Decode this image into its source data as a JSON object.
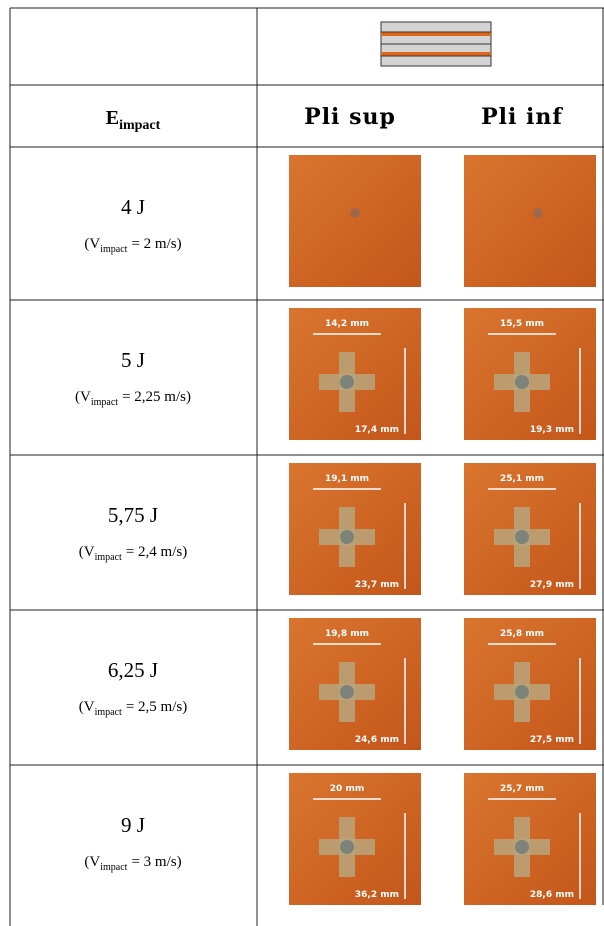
{
  "table": {
    "header": {
      "symbol": "E",
      "subscript": "impact",
      "columns": [
        "Pli sup",
        "Pli inf"
      ]
    },
    "rows": [
      {
        "energy": "4 J",
        "velocity_prefix": "(V",
        "velocity_sub": "impact",
        "velocity_value": "= 2 m/s)"
      },
      {
        "energy": "5 J",
        "velocity_prefix": "(V",
        "velocity_sub": "impact",
        "velocity_value": "= 2,25 m/s)",
        "sup": {
          "width": "14,2 mm",
          "height": "17,4 mm"
        },
        "inf": {
          "width": "15,5 mm",
          "height": "19,3 mm"
        }
      },
      {
        "energy": "5,75 J",
        "velocity_prefix": "(V",
        "velocity_sub": "impact",
        "velocity_value": "= 2,4 m/s)",
        "sup": {
          "width": "19,1 mm",
          "height": "23,7 mm"
        },
        "inf": {
          "width": "25,1 mm",
          "height": "27,9 mm"
        }
      },
      {
        "energy": "6,25 J",
        "velocity_prefix": "(V",
        "velocity_sub": "impact",
        "velocity_value": "= 2,5 m/s)",
        "sup": {
          "width": "19,8 mm",
          "height": "24,6 mm"
        },
        "inf": {
          "width": "25,8 mm",
          "height": "27,5 mm"
        }
      },
      {
        "energy": "9 J",
        "velocity_prefix": "(V",
        "velocity_sub": "impact",
        "velocity_value": "= 3 m/s)",
        "sup": {
          "width": "20 mm",
          "height": "36,2 mm"
        },
        "inf": {
          "width": "25,7 mm",
          "height": "28,6 mm"
        }
      }
    ]
  }
}
